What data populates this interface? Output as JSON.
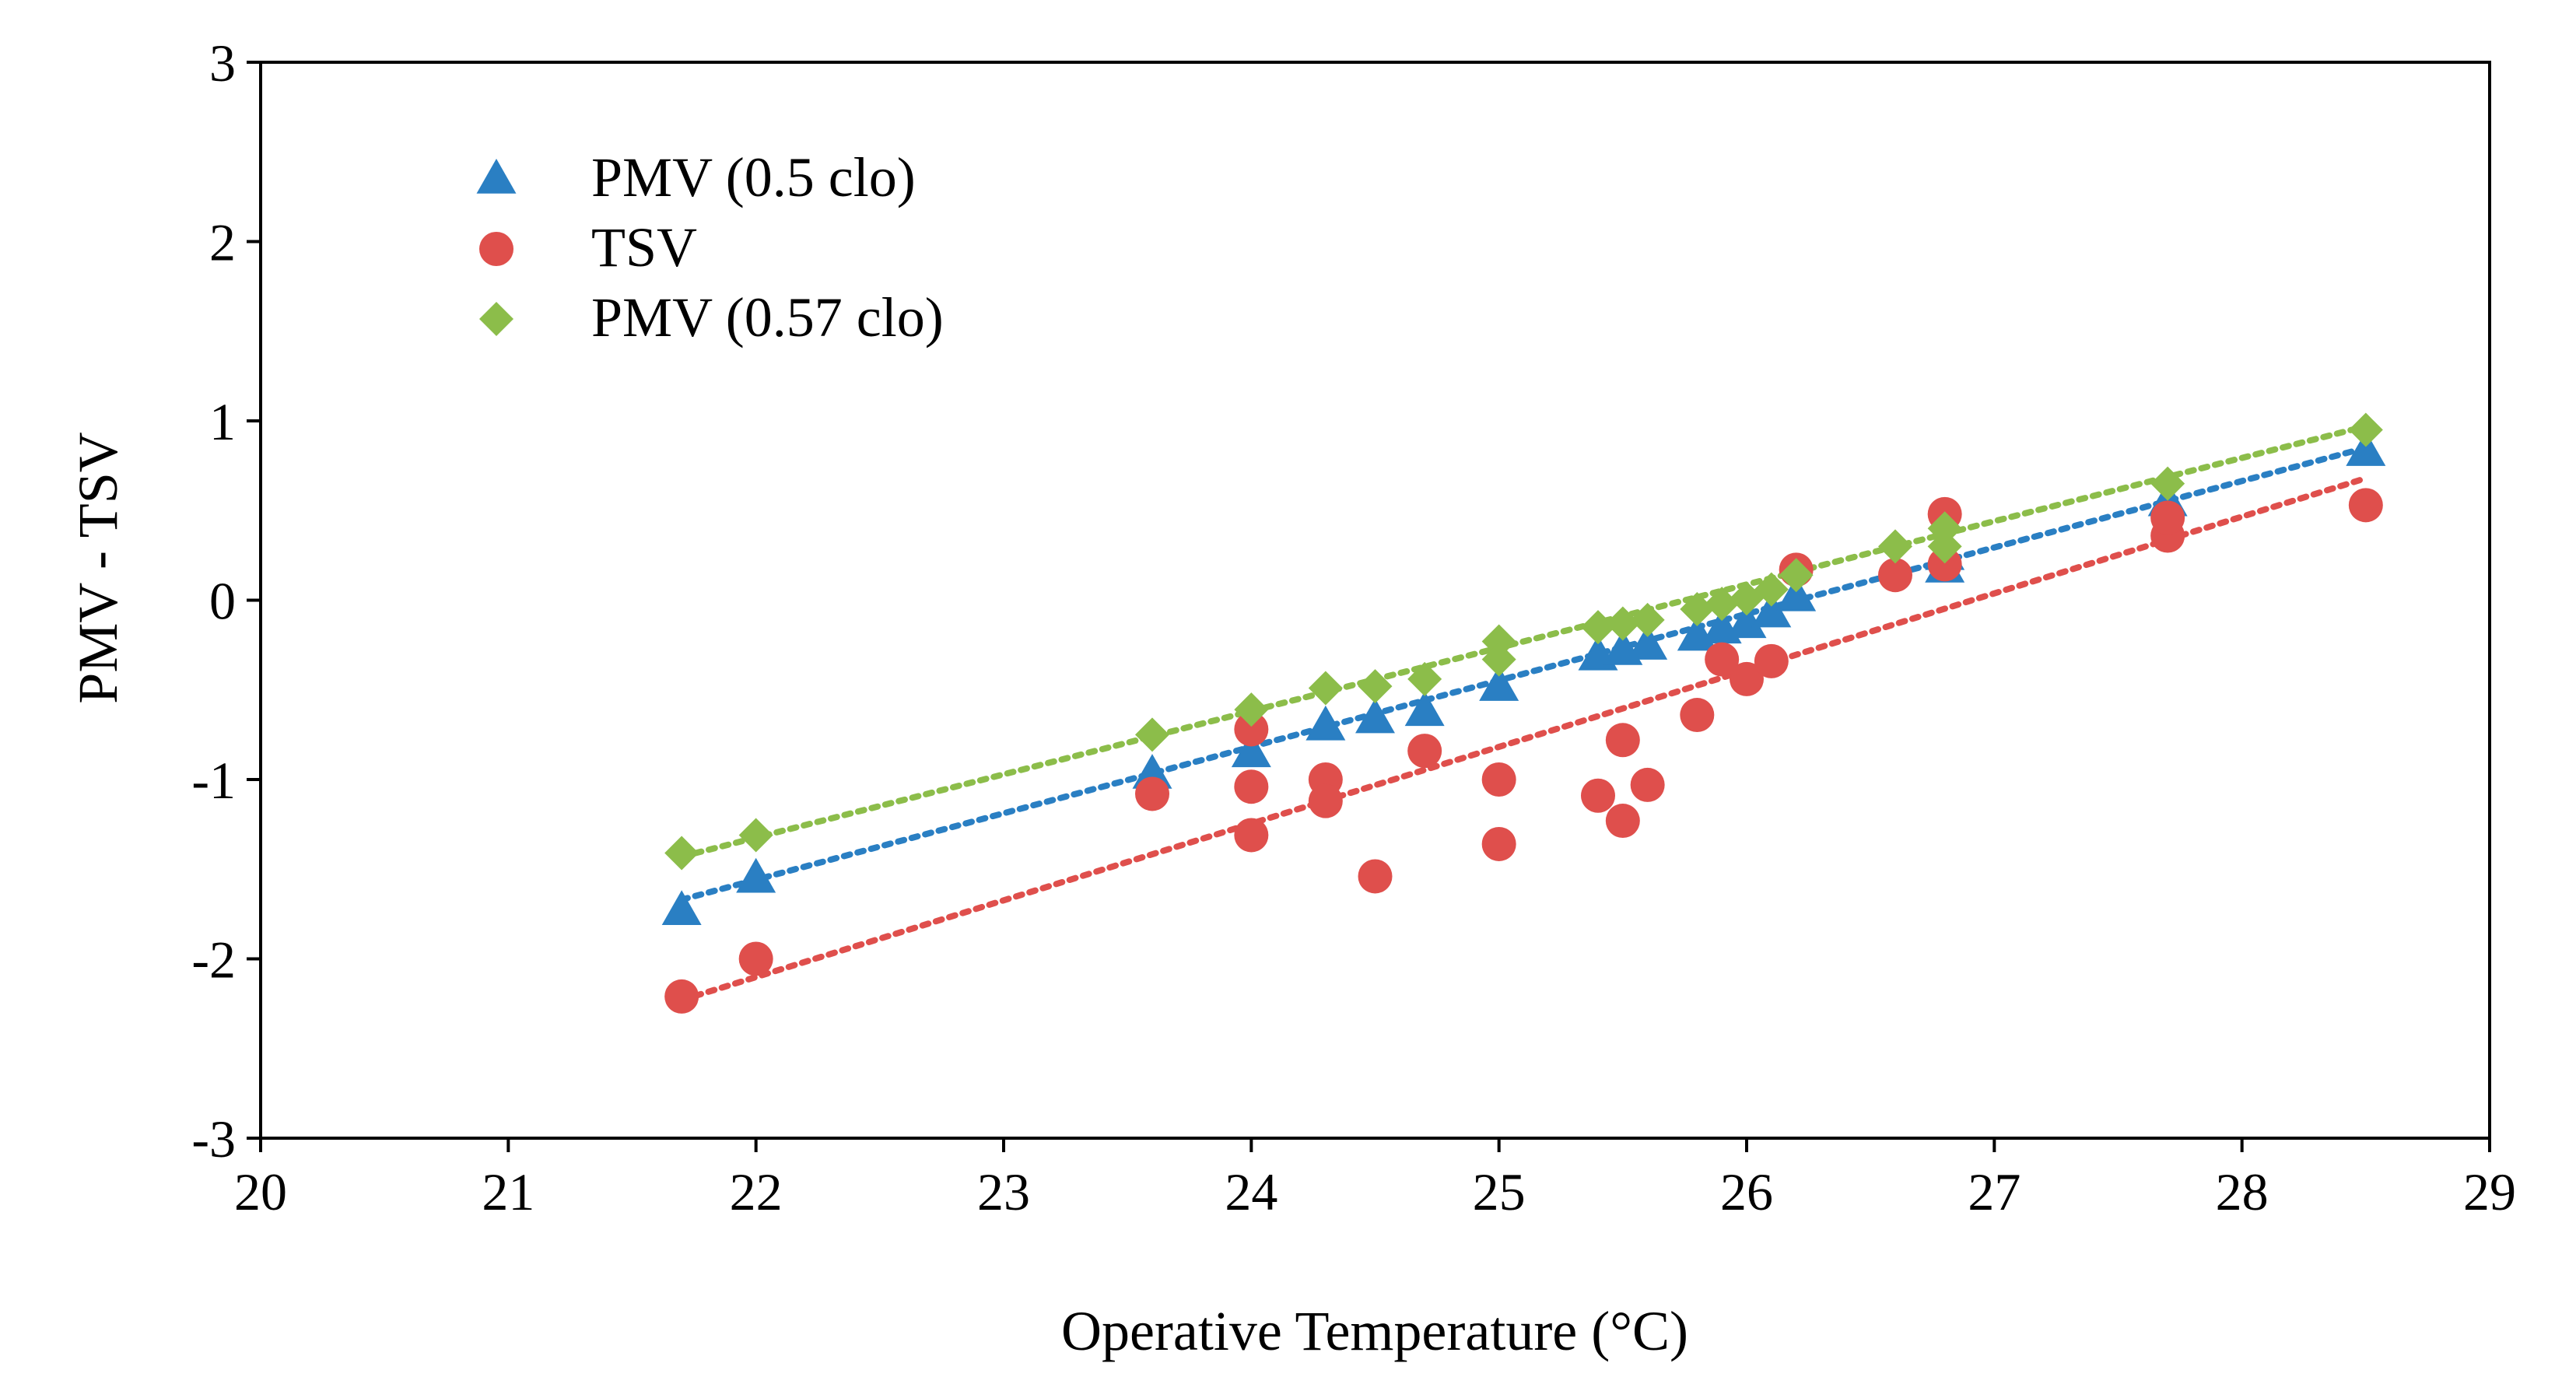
{
  "chart_data": {
    "type": "scatter",
    "xlabel": "Operative Temperature (°C)",
    "ylabel": "PMV - TSV",
    "xlim": [
      20,
      29
    ],
    "ylim": [
      -3,
      3
    ],
    "xticks": [
      20,
      21,
      22,
      23,
      24,
      25,
      26,
      27,
      28,
      29
    ],
    "yticks": [
      -3,
      -2,
      -1,
      0,
      1,
      2,
      3
    ],
    "grid": false,
    "legend_position": "top-left",
    "trendlines": "linear, dotted",
    "series": [
      {
        "name": "PMV (0.5 clo)",
        "marker": "triangle",
        "color": "#2a7fc3",
        "points": [
          [
            21.7,
            -1.73
          ],
          [
            22.0,
            -1.55
          ],
          [
            23.6,
            -0.97
          ],
          [
            24.0,
            -0.85
          ],
          [
            24.3,
            -0.7
          ],
          [
            24.5,
            -0.66
          ],
          [
            24.7,
            -0.62
          ],
          [
            25.0,
            -0.48
          ],
          [
            25.4,
            -0.31
          ],
          [
            25.5,
            -0.28
          ],
          [
            25.6,
            -0.25
          ],
          [
            25.8,
            -0.2
          ],
          [
            25.9,
            -0.16
          ],
          [
            26.0,
            -0.13
          ],
          [
            26.1,
            -0.07
          ],
          [
            26.2,
            0.02
          ],
          [
            26.8,
            0.18
          ],
          [
            26.8,
            0.25
          ],
          [
            27.7,
            0.55
          ],
          [
            28.5,
            0.83
          ]
        ],
        "trend": [
          [
            21.7,
            -1.67
          ],
          [
            28.5,
            0.85
          ]
        ]
      },
      {
        "name": "TSV",
        "marker": "circle",
        "color": "#df4f4c",
        "points": [
          [
            21.7,
            -2.21
          ],
          [
            22.0,
            -2.0
          ],
          [
            23.6,
            -1.08
          ],
          [
            24.0,
            -0.72
          ],
          [
            24.0,
            -1.04
          ],
          [
            24.0,
            -1.31
          ],
          [
            24.3,
            -1.0
          ],
          [
            24.3,
            -1.12
          ],
          [
            24.5,
            -1.54
          ],
          [
            24.7,
            -0.84
          ],
          [
            25.0,
            -1.0
          ],
          [
            25.0,
            -1.36
          ],
          [
            25.4,
            -1.09
          ],
          [
            25.5,
            -0.78
          ],
          [
            25.5,
            -1.23
          ],
          [
            25.6,
            -1.03
          ],
          [
            25.8,
            -0.64
          ],
          [
            25.9,
            -0.33
          ],
          [
            26.0,
            -0.44
          ],
          [
            26.1,
            -0.34
          ],
          [
            26.2,
            0.17
          ],
          [
            26.6,
            0.14
          ],
          [
            26.8,
            0.48
          ],
          [
            26.8,
            0.2
          ],
          [
            27.7,
            0.36
          ],
          [
            27.7,
            0.46
          ],
          [
            28.5,
            0.53
          ]
        ],
        "trend": [
          [
            21.7,
            -2.23
          ],
          [
            28.5,
            0.68
          ]
        ]
      },
      {
        "name": "PMV (0.57 clo)",
        "marker": "diamond",
        "color": "#8cbd4a",
        "points": [
          [
            21.7,
            -1.41
          ],
          [
            22.0,
            -1.31
          ],
          [
            23.6,
            -0.75
          ],
          [
            24.0,
            -0.61
          ],
          [
            24.3,
            -0.49
          ],
          [
            24.5,
            -0.48
          ],
          [
            24.7,
            -0.44
          ],
          [
            25.0,
            -0.23
          ],
          [
            25.0,
            -0.33
          ],
          [
            25.4,
            -0.15
          ],
          [
            25.5,
            -0.13
          ],
          [
            25.6,
            -0.11
          ],
          [
            25.8,
            -0.05
          ],
          [
            25.9,
            -0.02
          ],
          [
            26.0,
            0.01
          ],
          [
            26.1,
            0.06
          ],
          [
            26.2,
            0.14
          ],
          [
            26.6,
            0.3
          ],
          [
            26.8,
            0.4
          ],
          [
            26.8,
            0.3
          ],
          [
            27.7,
            0.65
          ],
          [
            28.5,
            0.95
          ]
        ],
        "trend": [
          [
            21.7,
            -1.43
          ],
          [
            28.5,
            0.97
          ]
        ]
      }
    ]
  }
}
